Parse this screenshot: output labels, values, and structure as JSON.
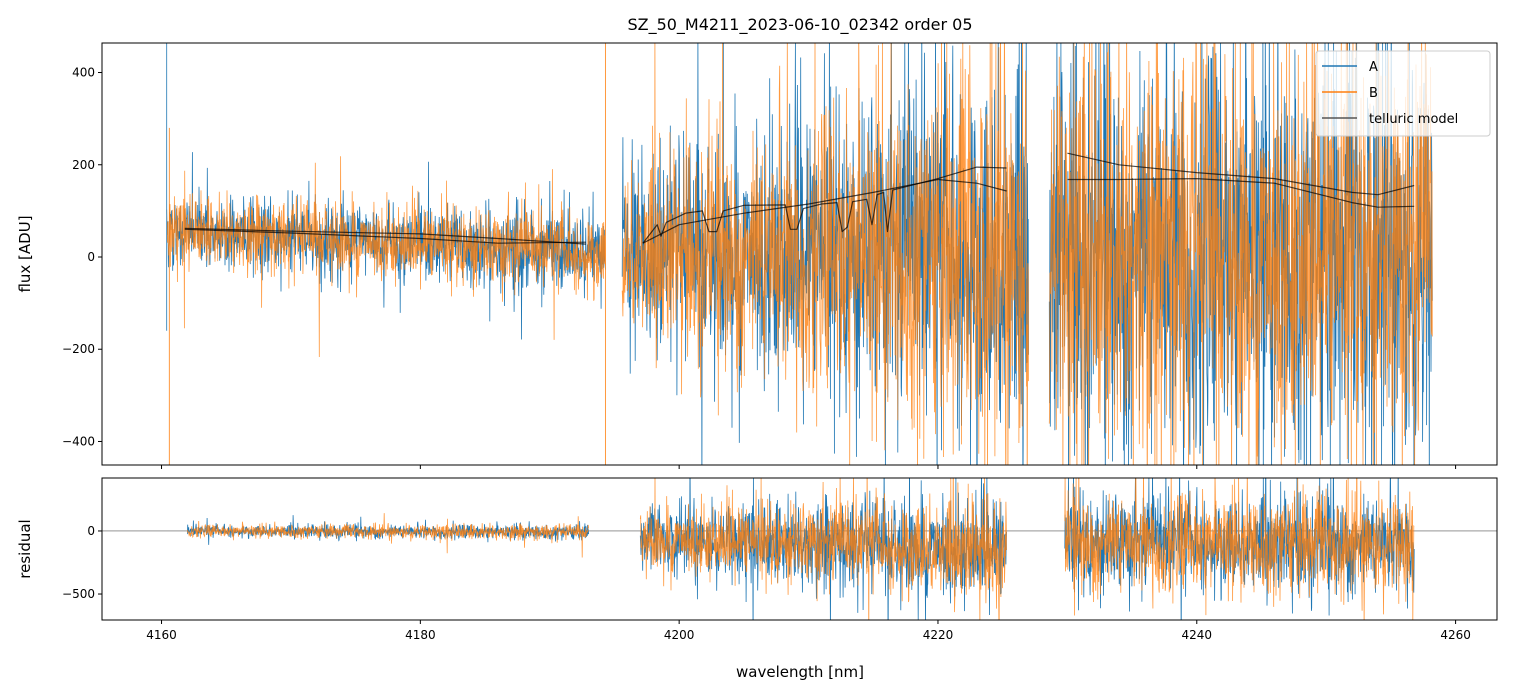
{
  "chart_data": [
    {
      "type": "line",
      "title": "SZ_50_M4211_2023-06-10_02342  order 05",
      "xlabel": "",
      "ylabel": "flux [ADU]",
      "xlim": [
        4155.4,
        4263.2
      ],
      "ylim": [
        -451,
        464
      ],
      "yticks": [
        -400,
        -200,
        0,
        200,
        400
      ],
      "ytick_labels": [
        "−400",
        "−200",
        "0",
        "200",
        "400"
      ],
      "legend": {
        "placement": "top-right",
        "entries": [
          "A",
          "B",
          "telluric model"
        ]
      },
      "colors": {
        "A": "#1f77b4",
        "B": "#ff7f0e",
        "telluric model": "#222222"
      },
      "noise_segments": [
        {
          "x": [
            4160.4,
            4194.3
          ],
          "mean": [
            60,
            5
          ],
          "sigma": [
            35,
            45
          ]
        },
        {
          "x": [
            4195.6,
            4227.0
          ],
          "mean": [
            10,
            0
          ],
          "sigma": [
            90,
            230
          ]
        },
        {
          "x": [
            4228.6,
            4258.2
          ],
          "mean": [
            10,
            0
          ],
          "sigma": [
            220,
            230
          ]
        }
      ],
      "telluric_model": [
        [
          [
            4161.8,
            60
          ],
          [
            4170,
            52
          ],
          [
            4180,
            40
          ],
          [
            4186,
            30
          ],
          [
            4192.8,
            32
          ]
        ],
        [
          [
            4161.8,
            62
          ],
          [
            4170,
            56
          ],
          [
            4180,
            50
          ],
          [
            4186,
            40
          ],
          [
            4192.8,
            28
          ]
        ],
        [
          [
            4197.2,
            30
          ],
          [
            4198.3,
            70
          ],
          [
            4198.6,
            45
          ],
          [
            4199,
            75
          ],
          [
            4200.5,
            95
          ],
          [
            4201.8,
            100
          ],
          [
            4202.3,
            55
          ],
          [
            4202.9,
            55
          ],
          [
            4203.4,
            100
          ],
          [
            4205,
            112
          ],
          [
            4208.2,
            113
          ],
          [
            4208.6,
            60
          ],
          [
            4209.1,
            60
          ],
          [
            4209.6,
            105
          ],
          [
            4211,
            115
          ],
          [
            4212.2,
            118
          ],
          [
            4212.6,
            55
          ],
          [
            4213.0,
            65
          ],
          [
            4213.4,
            120
          ],
          [
            4214.5,
            125
          ],
          [
            4214.9,
            70
          ],
          [
            4215.3,
            135
          ],
          [
            4215.8,
            140
          ],
          [
            4216.1,
            55
          ],
          [
            4216.5,
            145
          ],
          [
            4220,
            170
          ],
          [
            4223,
            195
          ],
          [
            4225.3,
            193
          ]
        ],
        [
          [
            4197.2,
            30
          ],
          [
            4200,
            70
          ],
          [
            4205,
            95
          ],
          [
            4210,
            115
          ],
          [
            4215,
            140
          ],
          [
            4220,
            168
          ],
          [
            4223,
            160
          ],
          [
            4225.3,
            143
          ]
        ],
        [
          [
            4230,
            225
          ],
          [
            4234,
            200
          ],
          [
            4240,
            183
          ],
          [
            4246,
            170
          ],
          [
            4252,
            140
          ],
          [
            4254,
            135
          ],
          [
            4256.8,
            155
          ]
        ],
        [
          [
            4230,
            168
          ],
          [
            4234,
            168
          ],
          [
            4240,
            170
          ],
          [
            4246,
            160
          ],
          [
            4252,
            118
          ],
          [
            4254,
            108
          ],
          [
            4256.8,
            110
          ]
        ]
      ]
    },
    {
      "type": "line",
      "xlabel": "wavelength [nm]",
      "ylabel": "residual",
      "xlim": [
        4155.4,
        4263.2
      ],
      "ylim": [
        -706,
        420
      ],
      "xticks": [
        4160,
        4180,
        4200,
        4220,
        4240,
        4260
      ],
      "xtick_labels": [
        "4160",
        "4180",
        "4200",
        "4220",
        "4240",
        "4260"
      ],
      "yticks": [
        -500,
        0
      ],
      "ytick_labels": [
        "−500",
        "0"
      ],
      "hline": 0,
      "noise_segments": [
        {
          "x": [
            4162.0,
            4193.0
          ],
          "mean": [
            0,
            -10
          ],
          "sigma": [
            25,
            30
          ]
        },
        {
          "x": [
            4197.0,
            4225.3
          ],
          "mean": [
            -60,
            -150
          ],
          "sigma": [
            120,
            220
          ]
        },
        {
          "x": [
            4229.8,
            4256.8
          ],
          "mean": [
            -100,
            -100
          ],
          "sigma": [
            200,
            200
          ]
        }
      ]
    }
  ]
}
